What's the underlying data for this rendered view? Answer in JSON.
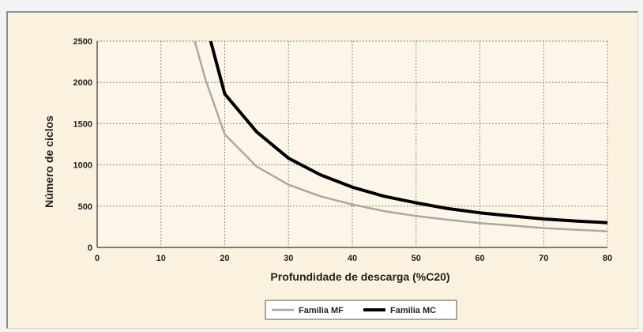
{
  "chart_data": {
    "type": "line",
    "xlabel": "Profundidade de descarga (%C20)",
    "ylabel": "Número de ciclos",
    "xlim": [
      0,
      80
    ],
    "ylim": [
      0,
      2500
    ],
    "xticks": [
      0,
      10,
      20,
      30,
      40,
      50,
      60,
      70,
      80
    ],
    "yticks": [
      0,
      500,
      1000,
      1500,
      2000,
      2500
    ],
    "grid": true,
    "legend_position": "bottom-center",
    "series": [
      {
        "name": "Familia MF",
        "color": "#a8a8a8",
        "x": [
          15.3,
          17,
          20,
          25,
          30,
          35,
          40,
          45,
          50,
          55,
          60,
          65,
          70,
          75,
          80
        ],
        "y": [
          2500,
          2030,
          1370,
          980,
          760,
          620,
          520,
          440,
          380,
          335,
          295,
          265,
          235,
          215,
          195
        ]
      },
      {
        "name": "Familia MC",
        "color": "#000000",
        "x": [
          17.8,
          20,
          25,
          30,
          35,
          40,
          45,
          50,
          55,
          60,
          65,
          70,
          75,
          80
        ],
        "y": [
          2500,
          1860,
          1400,
          1080,
          880,
          730,
          620,
          540,
          470,
          420,
          380,
          345,
          320,
          300
        ]
      }
    ]
  }
}
